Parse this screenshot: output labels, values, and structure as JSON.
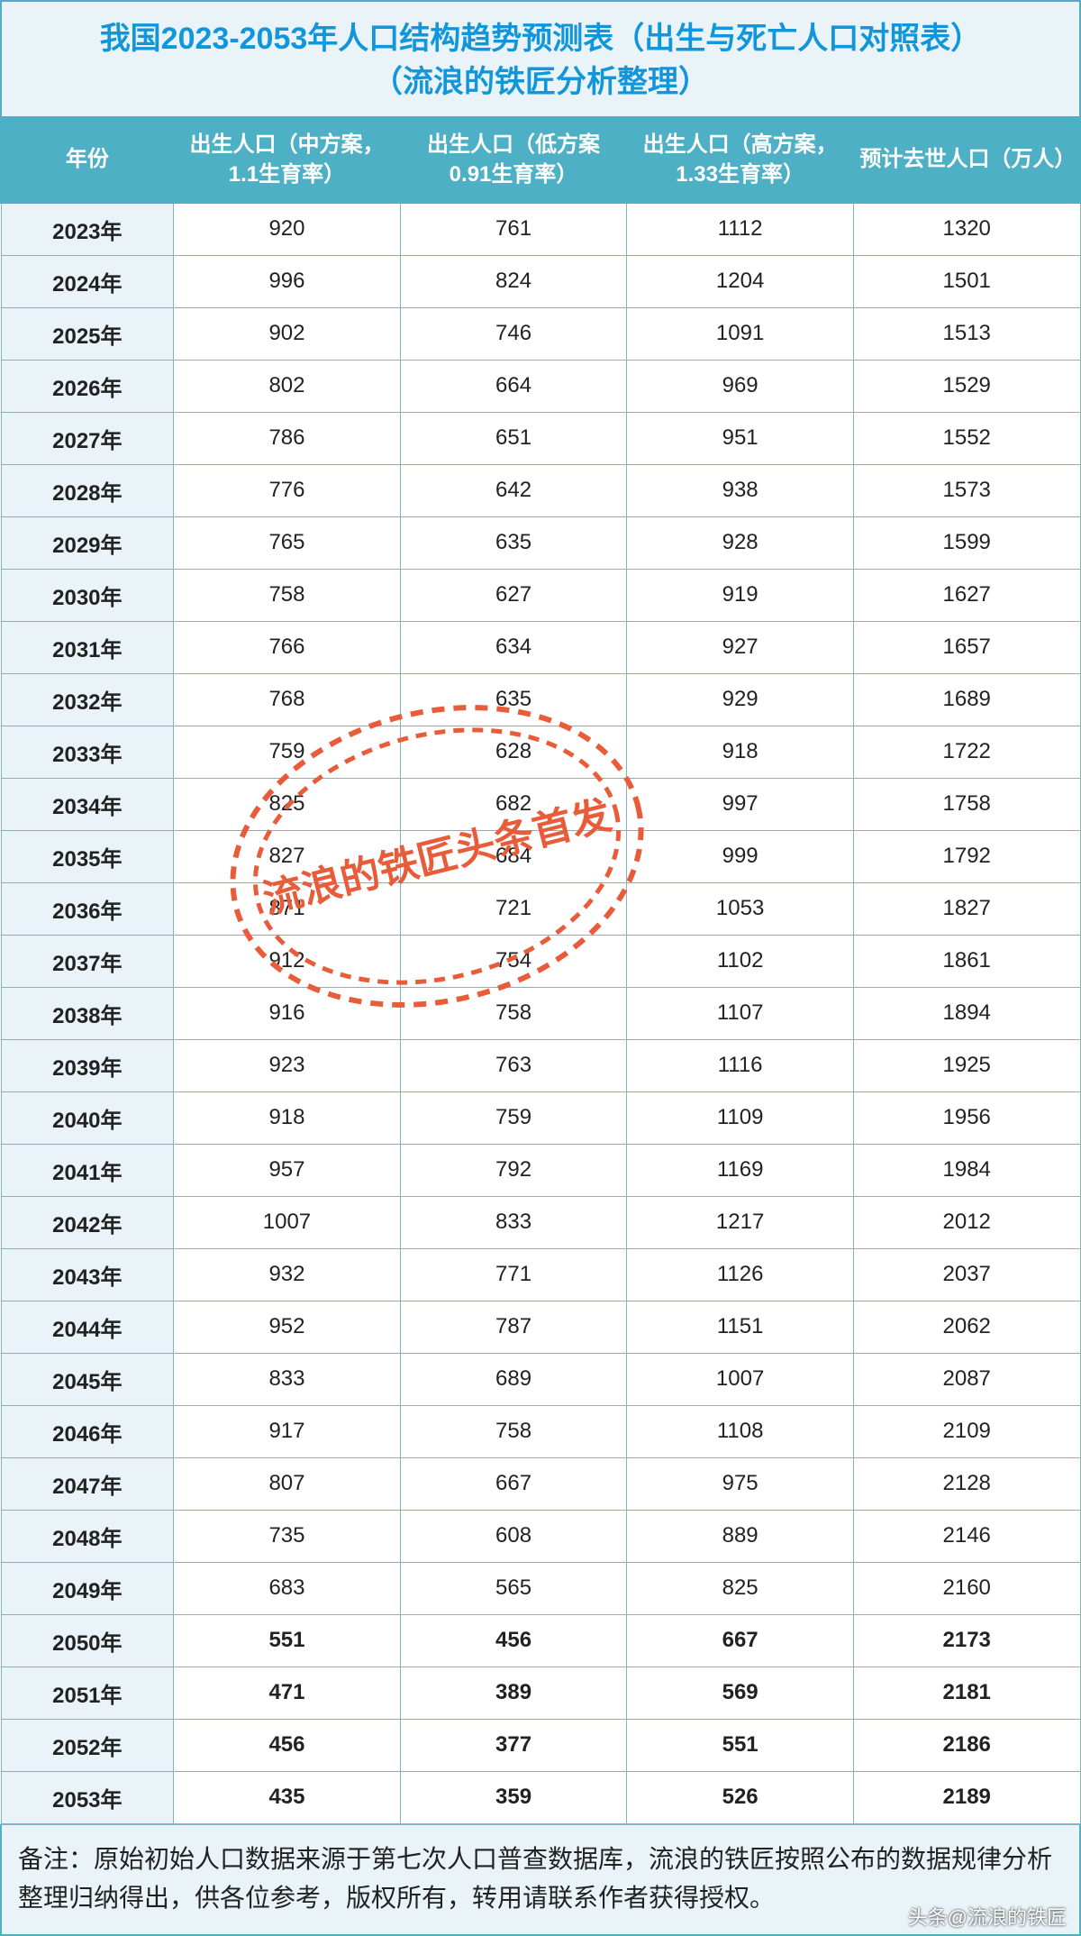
{
  "title_line1": "我国2023-2053年人口结构趋势预测表（出生与死亡人口对照表）",
  "title_line2": "（流浪的铁匠分析整理）",
  "columns": [
    "年份",
    "出生人口（中方案，1.1生育率）",
    "出生人口（低方案0.91生育率）",
    "出生人口（高方案，1.33生育率）",
    "预计去世人口（万人）"
  ],
  "rows": [
    {
      "year": "2023年",
      "mid": "920",
      "low": "761",
      "high": "1112",
      "death": "1320",
      "bold": false
    },
    {
      "year": "2024年",
      "mid": "996",
      "low": "824",
      "high": "1204",
      "death": "1501",
      "bold": false
    },
    {
      "year": "2025年",
      "mid": "902",
      "low": "746",
      "high": "1091",
      "death": "1513",
      "bold": false
    },
    {
      "year": "2026年",
      "mid": "802",
      "low": "664",
      "high": "969",
      "death": "1529",
      "bold": false
    },
    {
      "year": "2027年",
      "mid": "786",
      "low": "651",
      "high": "951",
      "death": "1552",
      "bold": false
    },
    {
      "year": "2028年",
      "mid": "776",
      "low": "642",
      "high": "938",
      "death": "1573",
      "bold": false
    },
    {
      "year": "2029年",
      "mid": "765",
      "low": "635",
      "high": "928",
      "death": "1599",
      "bold": false
    },
    {
      "year": "2030年",
      "mid": "758",
      "low": "627",
      "high": "919",
      "death": "1627",
      "bold": false
    },
    {
      "year": "2031年",
      "mid": "766",
      "low": "634",
      "high": "927",
      "death": "1657",
      "bold": false
    },
    {
      "year": "2032年",
      "mid": "768",
      "low": "635",
      "high": "929",
      "death": "1689",
      "bold": false
    },
    {
      "year": "2033年",
      "mid": "759",
      "low": "628",
      "high": "918",
      "death": "1722",
      "bold": false
    },
    {
      "year": "2034年",
      "mid": "825",
      "low": "682",
      "high": "997",
      "death": "1758",
      "bold": false
    },
    {
      "year": "2035年",
      "mid": "827",
      "low": "684",
      "high": "999",
      "death": "1792",
      "bold": false
    },
    {
      "year": "2036年",
      "mid": "871",
      "low": "721",
      "high": "1053",
      "death": "1827",
      "bold": false
    },
    {
      "year": "2037年",
      "mid": "912",
      "low": "754",
      "high": "1102",
      "death": "1861",
      "bold": false
    },
    {
      "year": "2038年",
      "mid": "916",
      "low": "758",
      "high": "1107",
      "death": "1894",
      "bold": false
    },
    {
      "year": "2039年",
      "mid": "923",
      "low": "763",
      "high": "1116",
      "death": "1925",
      "bold": false
    },
    {
      "year": "2040年",
      "mid": "918",
      "low": "759",
      "high": "1109",
      "death": "1956",
      "bold": false
    },
    {
      "year": "2041年",
      "mid": "957",
      "low": "792",
      "high": "1169",
      "death": "1984",
      "bold": false
    },
    {
      "year": "2042年",
      "mid": "1007",
      "low": "833",
      "high": "1217",
      "death": "2012",
      "bold": false
    },
    {
      "year": "2043年",
      "mid": "932",
      "low": "771",
      "high": "1126",
      "death": "2037",
      "bold": false
    },
    {
      "year": "2044年",
      "mid": "952",
      "low": "787",
      "high": "1151",
      "death": "2062",
      "bold": false
    },
    {
      "year": "2045年",
      "mid": "833",
      "low": "689",
      "high": "1007",
      "death": "2087",
      "bold": false
    },
    {
      "year": "2046年",
      "mid": "917",
      "low": "758",
      "high": "1108",
      "death": "2109",
      "bold": false
    },
    {
      "year": "2047年",
      "mid": "807",
      "low": "667",
      "high": "975",
      "death": "2128",
      "bold": false
    },
    {
      "year": "2048年",
      "mid": "735",
      "low": "608",
      "high": "889",
      "death": "2146",
      "bold": false
    },
    {
      "year": "2049年",
      "mid": "683",
      "low": "565",
      "high": "825",
      "death": "2160",
      "bold": false
    },
    {
      "year": "2050年",
      "mid": "551",
      "low": "456",
      "high": "667",
      "death": "2173",
      "bold": true
    },
    {
      "year": "2051年",
      "mid": "471",
      "low": "389",
      "high": "569",
      "death": "2181",
      "bold": true
    },
    {
      "year": "2052年",
      "mid": "456",
      "low": "377",
      "high": "551",
      "death": "2186",
      "bold": true
    },
    {
      "year": "2053年",
      "mid": "435",
      "low": "359",
      "high": "526",
      "death": "2189",
      "bold": true
    }
  ],
  "footnote": "备注：原始初始人口数据来源于第七次人口普查数据库，流浪的铁匠按照公布的数据规律分析整理归纳得出，供各位参考，版权所有，转用请联系作者获得授权。",
  "watermark_stamp_text": "流浪的铁匠头条首发",
  "watermark_corner_text": "头条@流浪的铁匠",
  "styling": {
    "type": "table",
    "header_bg": "#4db0c4",
    "header_text_color": "#ffffff",
    "title_bg": "#eaf4f8",
    "title_text_color": "#1296db",
    "cell_bg": "#ffffff",
    "year_cell_bg": "#eaf4f8",
    "border_color": "#7fb5c0",
    "outer_border_color": "#4db0c4",
    "body_text_color": "#222222",
    "stamp_color": "#e85c3a",
    "stamp_dash": "8,8",
    "stamp_stroke_width": 5,
    "title_fontsize": 34,
    "header_fontsize": 24,
    "cell_fontsize": 24,
    "footnote_fontsize": 28,
    "column_widths_pct": [
      16,
      21,
      21,
      21,
      21
    ]
  }
}
